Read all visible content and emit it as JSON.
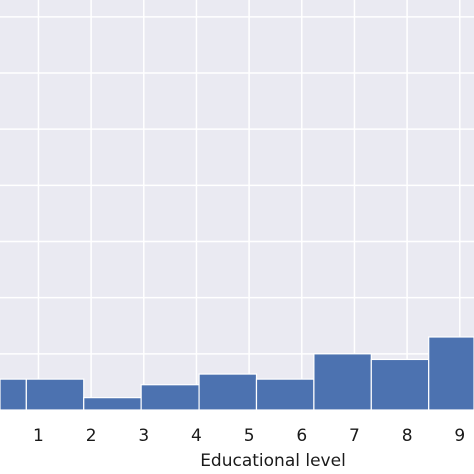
{
  "chart_data": {
    "type": "bar",
    "title": "",
    "xlabel": "Educational level",
    "ylabel": "",
    "x_tick_labels": [
      "1",
      "2",
      "3",
      "4",
      "5",
      "6",
      "7",
      "8",
      "9"
    ],
    "x_ticks": [
      1,
      2,
      3,
      4,
      5,
      6,
      7,
      8,
      9
    ],
    "xlim": [
      0.27,
      9.27
    ],
    "ylim": [
      0,
      7.3
    ],
    "grid": true,
    "colors": {
      "bar": "#4c72b0",
      "background": "#eaeaf2",
      "grid": "#ffffff"
    },
    "bins": [
      {
        "x0": 0.27,
        "x1": 0.77,
        "value": 0.55
      },
      {
        "x0": 0.77,
        "x1": 1.86,
        "value": 0.55
      },
      {
        "x0": 1.86,
        "x1": 2.95,
        "value": 0.22
      },
      {
        "x0": 2.95,
        "x1": 4.05,
        "value": 0.45
      },
      {
        "x0": 4.05,
        "x1": 5.14,
        "value": 0.64
      },
      {
        "x0": 5.14,
        "x1": 6.23,
        "value": 0.55
      },
      {
        "x0": 6.23,
        "x1": 7.32,
        "value": 1.0
      },
      {
        "x0": 7.32,
        "x1": 8.41,
        "value": 0.9
      },
      {
        "x0": 8.41,
        "x1": 9.27,
        "value": 1.3
      }
    ]
  }
}
